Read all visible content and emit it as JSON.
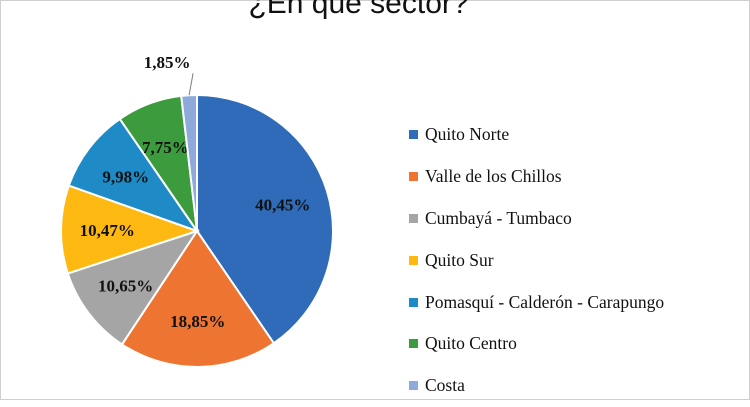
{
  "chart_data": {
    "type": "pie",
    "title": "¿En qué sector?",
    "legend_position": "right",
    "slices": [
      {
        "label": "Quito Norte",
        "value": 40.45,
        "value_label": "40,45%",
        "color": "#2f6bb8"
      },
      {
        "label": "Valle de los Chillos",
        "value": 18.85,
        "value_label": "18,85%",
        "color": "#ee7432"
      },
      {
        "label": "Cumbayá - Tumbaco",
        "value": 10.65,
        "value_label": "10,65%",
        "color": "#a5a5a5"
      },
      {
        "label": "Quito Sur",
        "value": 10.47,
        "value_label": "10,47%",
        "color": "#fdb812"
      },
      {
        "label": "Pomasquí - Calderón - Carapungo",
        "value": 9.98,
        "value_label": "9,98%",
        "color": "#1e8bc7"
      },
      {
        "label": "Quito Centro",
        "value": 7.75,
        "value_label": "7,75%",
        "color": "#3c9b3c"
      },
      {
        "label": "Costa",
        "value": 1.85,
        "value_label": "1,85%",
        "color": "#8eaadb"
      }
    ]
  }
}
